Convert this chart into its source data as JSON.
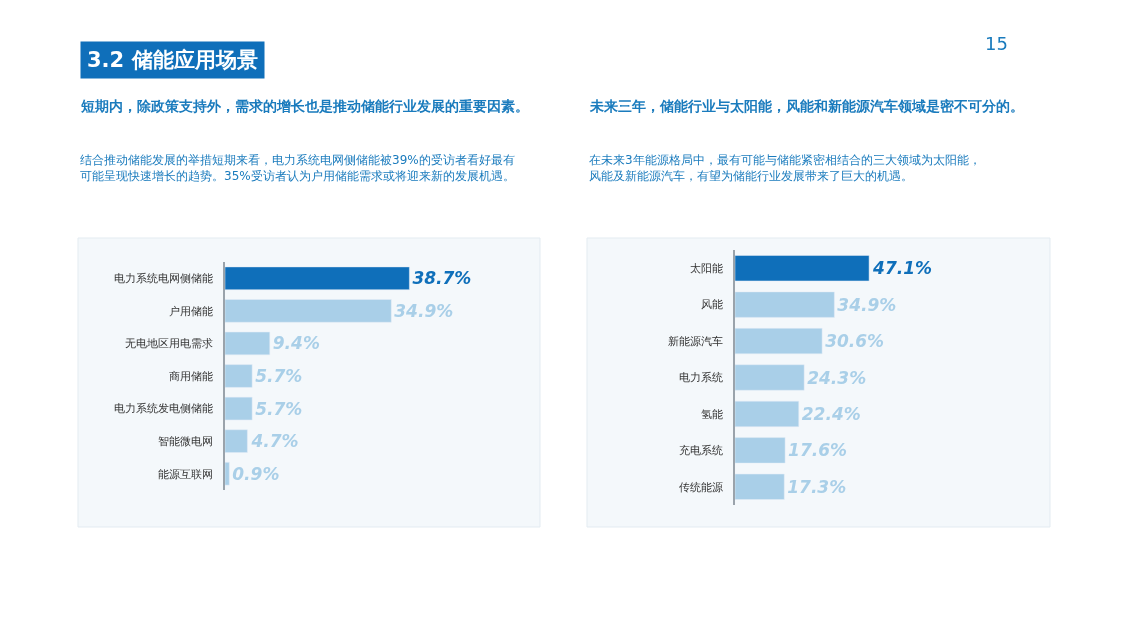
{
  "chart_data": [
    {
      "type": "bar",
      "orientation": "horizontal",
      "title": "短期内，除政策支持外，需求的增长也是推动储能行业发展的重要因素。",
      "subtitle": "结合推动储能发展的举措短期来看，电力系统电网侧储能被39%的受访者看好最有可能呈现快速增长的趋势。35%受访者认为户用储能需求或将迎来新的发展机遇。",
      "annotations": [
        "3.2 储能应用场景",
        "15"
      ],
      "categories": [
        "电力系统电网侧储能",
        "户用储能",
        "无电地区用电需求",
        "商用储能",
        "电力系统发电侧储能",
        "智能微电网",
        "能源互联网"
      ],
      "values": [
        38.7,
        34.9,
        9.4,
        5.7,
        5.7,
        4.7,
        0.9
      ],
      "colors": [
        "#0f6fba",
        "#a9cfe8",
        "#a9cfe8",
        "#a9cfe8",
        "#a9cfe8",
        "#a9cfe8",
        "#a9cfe8"
      ],
      "value_labels": [
        "38.7%",
        "34.9%",
        "9.4%",
        "5.7%",
        "5.7%",
        "4.7%",
        "0.9%"
      ],
      "tick_labels": "y",
      "grid": false
    },
    {
      "type": "bar",
      "orientation": "horizontal",
      "title": "未来三年，储能行业与太阳能，风能和新能源汽车领域是密不可分的。",
      "subtitle": "在未来3年能源格局中，最有可能与储能紧密相结合的三大领域为太阳能，风能及新能源汽车，有望为储能行业发展带来了巨大的机遇。",
      "categories": [
        "太阳能",
        "风能",
        "新能源汽车",
        "电力系统",
        "氢能",
        "充电系统",
        "传统能源"
      ],
      "values": [
        47.1,
        34.9,
        30.6,
        24.3,
        22.4,
        17.6,
        17.3
      ],
      "colors": [
        "#0f6fba",
        "#a9cfe8",
        "#a9cfe8",
        "#a9cfe8",
        "#a9cfe8",
        "#a9cfe8",
        "#a9cfe8"
      ],
      "value_labels": [
        "47.1%",
        "34.9%",
        "30.6%",
        "24.3%",
        "22.4%",
        "17.6%",
        "17.3%"
      ],
      "tick_labels": "y",
      "grid": false
    }
  ]
}
